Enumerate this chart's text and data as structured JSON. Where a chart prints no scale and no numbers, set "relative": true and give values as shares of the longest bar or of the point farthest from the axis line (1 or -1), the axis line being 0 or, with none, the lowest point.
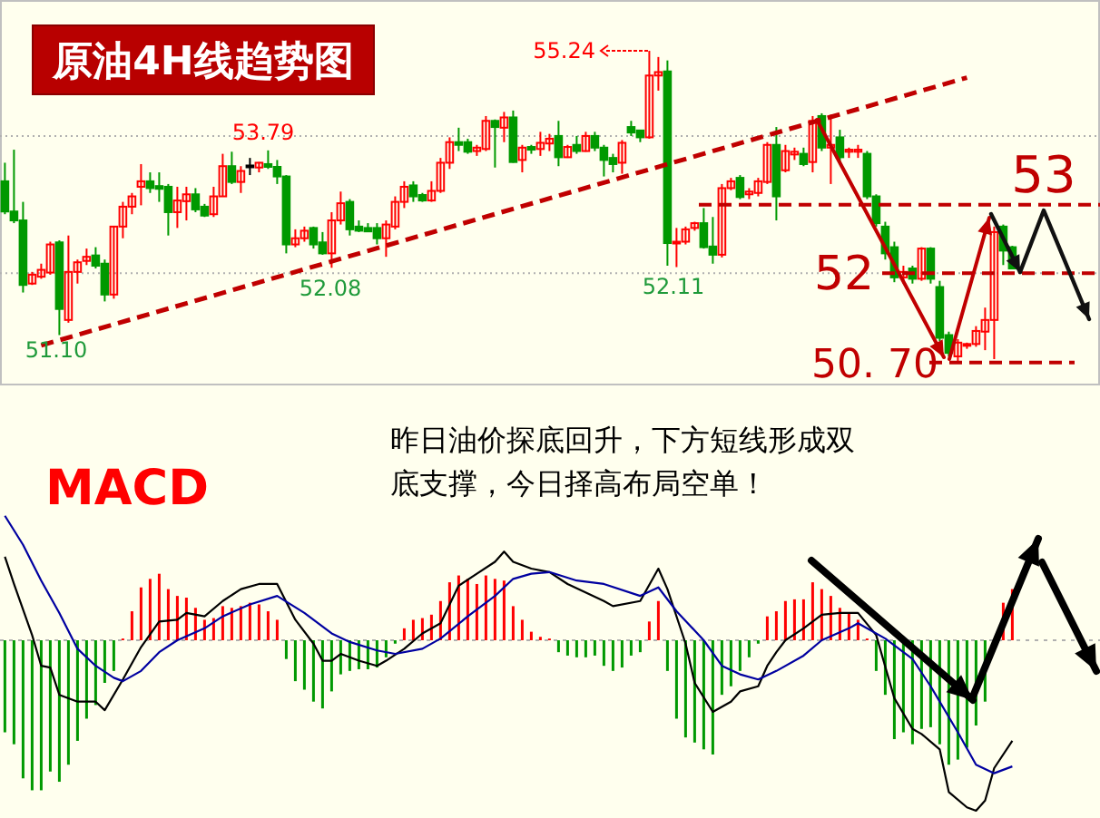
{
  "chart_data": [
    {
      "type": "candlestick",
      "title": "原油4H线趋势图",
      "categories": [
        null,
        null,
        null,
        null,
        null,
        null,
        null,
        null,
        null,
        null,
        null,
        null,
        null,
        null,
        null,
        null,
        null,
        null,
        null,
        null,
        null,
        null,
        null,
        null,
        null,
        null,
        null,
        null,
        null,
        null,
        null,
        null,
        null,
        null,
        null,
        null,
        null,
        null,
        null,
        null,
        null,
        null,
        null,
        null,
        null,
        null,
        null,
        null,
        null,
        null,
        null,
        null,
        null,
        null,
        null,
        null,
        null,
        null,
        null,
        null,
        null,
        null,
        null,
        null,
        null,
        null,
        null,
        null,
        null,
        null,
        null,
        null,
        null,
        null,
        null,
        null,
        null,
        null,
        null,
        null,
        null,
        null,
        null,
        null,
        null,
        null,
        null,
        null,
        null,
        null,
        null,
        null,
        null,
        null,
        null,
        null,
        null,
        null,
        null,
        null,
        null,
        null,
        null,
        null,
        null,
        null,
        null,
        null,
        null,
        null,
        null,
        null
      ],
      "ohlc": [
        [
          53.34,
          53.61,
          52.86,
          52.9
        ],
        [
          52.9,
          53.8,
          52.73,
          52.77
        ],
        [
          52.77,
          53.04,
          51.72,
          51.83
        ],
        [
          51.85,
          52.02,
          51.83,
          51.98
        ],
        [
          51.95,
          52.14,
          51.92,
          52.05
        ],
        [
          52.01,
          52.46,
          51.98,
          52.42
        ],
        [
          52.45,
          52.48,
          51.1,
          51.48
        ],
        [
          51.32,
          52.55,
          51.28,
          52.02
        ],
        [
          52.02,
          52.2,
          51.85,
          52.16
        ],
        [
          52.18,
          52.36,
          52.12,
          52.24
        ],
        [
          52.26,
          52.38,
          52.07,
          52.11
        ],
        [
          52.14,
          52.2,
          51.59,
          51.69
        ],
        [
          51.69,
          52.68,
          51.63,
          52.68
        ],
        [
          52.68,
          53.04,
          52.51,
          52.97
        ],
        [
          52.97,
          53.17,
          52.86,
          53.12
        ],
        [
          53.26,
          53.59,
          52.99,
          53.34
        ],
        [
          53.34,
          53.47,
          53.17,
          53.24
        ],
        [
          53.27,
          53.47,
          53.04,
          53.23
        ],
        [
          53.26,
          53.3,
          52.55,
          52.89
        ],
        [
          52.89,
          53.26,
          52.66,
          53.06
        ],
        [
          53.05,
          53.26,
          52.77,
          53.15
        ],
        [
          53.15,
          53.24,
          52.89,
          52.93
        ],
        [
          52.97,
          53.01,
          52.82,
          52.84
        ],
        [
          52.86,
          53.26,
          52.82,
          53.12
        ],
        [
          53.12,
          53.74,
          53.12,
          53.56
        ],
        [
          53.56,
          53.77,
          53.3,
          53.33
        ],
        [
          53.33,
          53.56,
          53.17,
          53.49
        ],
        [
          53.57,
          53.68,
          53.43,
          53.57
        ],
        [
          53.54,
          53.62,
          53.47,
          53.61
        ],
        [
          53.59,
          53.79,
          53.52,
          53.55
        ],
        [
          53.55,
          53.65,
          53.3,
          53.41
        ],
        [
          53.41,
          53.43,
          52.29,
          52.42
        ],
        [
          52.42,
          52.64,
          52.38,
          52.51
        ],
        [
          52.51,
          52.68,
          52.46,
          52.62
        ],
        [
          52.66,
          52.68,
          52.36,
          52.42
        ],
        [
          52.45,
          52.6,
          52.27,
          52.29
        ],
        [
          52.29,
          52.89,
          52.08,
          52.77
        ],
        [
          52.77,
          53.19,
          52.71,
          53.02
        ],
        [
          53.04,
          53.08,
          52.55,
          52.64
        ],
        [
          52.68,
          52.77,
          52.6,
          52.62
        ],
        [
          52.66,
          52.73,
          52.6,
          52.61
        ],
        [
          52.66,
          52.73,
          52.42,
          52.51
        ],
        [
          52.51,
          52.77,
          52.24,
          52.71
        ],
        [
          52.68,
          53.12,
          52.64,
          53.04
        ],
        [
          53.04,
          53.34,
          52.95,
          53.26
        ],
        [
          53.28,
          53.34,
          53.04,
          53.12
        ],
        [
          53.14,
          53.17,
          53.04,
          53.06
        ],
        [
          53.06,
          53.34,
          53.04,
          53.2
        ],
        [
          53.2,
          53.68,
          53.17,
          53.61
        ],
        [
          53.61,
          53.98,
          53.52,
          53.91
        ],
        [
          53.91,
          54.12,
          53.78,
          53.87
        ],
        [
          53.91,
          53.96,
          53.74,
          53.77
        ],
        [
          53.78,
          53.87,
          53.71,
          53.83
        ],
        [
          53.81,
          54.29,
          53.78,
          54.22
        ],
        [
          54.22,
          54.24,
          53.54,
          54.13
        ],
        [
          54.12,
          54.35,
          53.91,
          54.27
        ],
        [
          54.27,
          54.37,
          53.61,
          53.62
        ],
        [
          53.65,
          53.87,
          53.47,
          53.83
        ],
        [
          53.84,
          53.87,
          53.74,
          53.8
        ],
        [
          53.81,
          54.06,
          53.71,
          53.9
        ],
        [
          53.89,
          54.03,
          53.78,
          53.96
        ],
        [
          54.0,
          54.22,
          53.56,
          53.69
        ],
        [
          53.69,
          53.87,
          53.68,
          53.84
        ],
        [
          53.87,
          54.0,
          53.74,
          53.78
        ],
        [
          53.78,
          54.06,
          53.77,
          54.0
        ],
        [
          54.0,
          54.06,
          53.78,
          53.83
        ],
        [
          53.83,
          53.87,
          53.41,
          53.65
        ],
        [
          53.68,
          53.74,
          53.47,
          53.59
        ],
        [
          53.61,
          53.94,
          53.45,
          53.9
        ],
        [
          54.13,
          54.22,
          54.0,
          54.05
        ],
        [
          54.08,
          54.09,
          53.91,
          53.98
        ],
        [
          53.98,
          55.24,
          53.96,
          54.88
        ],
        [
          54.88,
          55.15,
          54.66,
          54.93
        ],
        [
          54.94,
          55.1,
          52.11,
          52.44
        ],
        [
          52.45,
          52.66,
          52.09,
          52.46
        ],
        [
          52.46,
          52.68,
          52.42,
          52.64
        ],
        [
          52.66,
          52.75,
          52.62,
          52.73
        ],
        [
          52.73,
          52.95,
          52.36,
          52.38
        ],
        [
          52.39,
          52.82,
          52.14,
          52.27
        ],
        [
          52.27,
          53.3,
          52.23,
          53.24
        ],
        [
          53.24,
          53.39,
          53.21,
          53.34
        ],
        [
          53.39,
          53.43,
          53.08,
          53.11
        ],
        [
          53.15,
          53.24,
          53.08,
          53.19
        ],
        [
          53.17,
          53.39,
          53.12,
          53.34
        ],
        [
          53.33,
          53.91,
          53.3,
          53.87
        ],
        [
          53.87,
          54.13,
          52.77,
          53.12
        ],
        [
          53.5,
          53.87,
          53.47,
          53.78
        ],
        [
          53.73,
          53.83,
          53.65,
          53.77
        ],
        [
          53.74,
          53.83,
          53.56,
          53.59
        ],
        [
          53.62,
          54.29,
          53.47,
          54.22
        ],
        [
          54.29,
          54.33,
          53.78,
          53.83
        ],
        [
          53.83,
          54.31,
          53.3,
          53.87
        ],
        [
          53.98,
          54.09,
          53.62,
          53.69
        ],
        [
          53.77,
          53.83,
          53.68,
          53.8
        ],
        [
          53.77,
          53.87,
          53.68,
          53.8
        ],
        [
          53.74,
          53.78,
          53.08,
          53.12
        ],
        [
          53.12,
          53.15,
          52.68,
          52.73
        ],
        [
          52.68,
          52.75,
          52.2,
          52.29
        ],
        [
          52.38,
          52.46,
          51.87,
          51.94
        ],
        [
          51.94,
          52.11,
          51.85,
          52.02
        ],
        [
          52.07,
          52.11,
          51.85,
          51.92
        ],
        [
          51.92,
          52.38,
          51.89,
          52.36
        ],
        [
          52.36,
          52.38,
          51.85,
          51.92
        ],
        [
          51.8,
          51.89,
          51.01,
          51.06
        ],
        [
          51.1,
          51.15,
          50.79,
          50.84
        ],
        [
          50.79,
          51.04,
          50.7,
          50.99
        ],
        [
          50.95,
          50.99,
          50.9,
          50.97
        ],
        [
          50.97,
          51.23,
          50.93,
          51.16
        ],
        [
          51.15,
          51.5,
          50.88,
          51.32
        ],
        [
          51.32,
          52.68,
          50.75,
          52.6
        ],
        [
          52.68,
          52.71,
          52.12,
          52.33
        ],
        [
          52.38,
          52.4,
          52.07,
          52.07
        ]
      ],
      "colors": [
        "#009900",
        "#009900",
        "#009900",
        "#ff0000",
        "#ff0000",
        "#ff0000",
        "#009900",
        "#ff0000",
        "#ff0000",
        "#ff0000",
        "#009900",
        "#009900",
        "#ff0000",
        "#ff0000",
        "#ff0000",
        "#ff0000",
        "#009900",
        "#009900",
        "#009900",
        "#ff0000",
        "#ff0000",
        "#009900",
        "#009900",
        "#ff0000",
        "#ff0000",
        "#009900",
        "#ff0000",
        "#000000",
        "#ff0000",
        "#009900",
        "#009900",
        "#009900",
        "#ff0000",
        "#ff0000",
        "#009900",
        "#009900",
        "#ff0000",
        "#ff0000",
        "#009900",
        "#009900",
        "#009900",
        "#009900",
        "#ff0000",
        "#ff0000",
        "#ff0000",
        "#009900",
        "#009900",
        "#ff0000",
        "#ff0000",
        "#ff0000",
        "#009900",
        "#009900",
        "#ff0000",
        "#ff0000",
        "#009900",
        "#ff0000",
        "#009900",
        "#ff0000",
        "#009900",
        "#ff0000",
        "#ff0000",
        "#009900",
        "#ff0000",
        "#009900",
        "#ff0000",
        "#009900",
        "#009900",
        "#009900",
        "#ff0000",
        "#009900",
        "#009900",
        "#ff0000",
        "#ff0000",
        "#009900",
        "#ff0000",
        "#ff0000",
        "#ff0000",
        "#009900",
        "#009900",
        "#ff0000",
        "#ff0000",
        "#009900",
        "#ff0000",
        "#ff0000",
        "#ff0000",
        "#009900",
        "#ff0000",
        "#ff0000",
        "#009900",
        "#ff0000",
        "#009900",
        "#ff0000",
        "#009900",
        "#ff0000",
        "#ff0000",
        "#009900",
        "#009900",
        "#009900",
        "#009900",
        "#ff0000",
        "#009900",
        "#ff0000",
        "#009900",
        "#009900",
        "#009900",
        "#ff0000",
        "#ff0000",
        "#ff0000",
        "#ff0000",
        "#ff0000",
        "#009900",
        "#009900"
      ],
      "series": [
        {
          "type": "line",
          "color": "#c00000",
          "values": [
            null,
            null,
            null,
            null,
            50.95,
            null,
            null,
            null,
            null,
            null,
            null,
            null,
            null,
            null,
            null,
            null,
            null,
            null,
            null,
            null,
            null,
            null,
            null,
            null,
            null,
            null,
            null,
            null,
            null,
            null,
            null,
            null,
            null,
            null,
            null,
            null,
            null,
            null,
            null,
            null,
            null,
            null,
            null,
            null,
            null,
            null,
            null,
            null,
            null,
            null,
            null,
            null,
            null,
            null,
            null,
            null,
            null,
            null,
            null,
            null,
            null,
            null,
            null,
            null,
            null,
            null,
            null,
            null,
            null,
            null,
            null,
            null,
            null,
            null,
            null,
            null,
            null,
            null,
            null,
            null,
            null,
            null,
            null,
            null,
            null,
            null,
            null,
            null,
            null,
            null,
            null,
            null,
            null,
            null,
            null,
            null,
            null,
            null,
            null,
            null,
            null,
            null,
            null,
            null,
            null,
            null,
            54.85,
            null,
            null,
            null,
            null,
            null
          ]
        }
      ],
      "line_style": "dashed",
      "ylim": [
        50.38,
        55.98
      ],
      "yticks": [
        {
          "value": 52,
          "label": null
        },
        {
          "value": 54,
          "label": null
        }
      ],
      "grid": "y",
      "ref_lines": [
        {
          "axis": "y",
          "value": 53,
          "label": "53",
          "color": "#c00000",
          "line_style": "dashed"
        },
        {
          "axis": "y",
          "value": 52,
          "label": "52",
          "color": "#c00000",
          "line_style": "dashed"
        },
        {
          "axis": "y",
          "value": 50.7,
          "color": "#c00000",
          "line_style": "dashed"
        }
      ],
      "annotations": [
        "55.24",
        "53.79",
        "52.08",
        "51.10",
        "52.11",
        "50. 70"
      ]
    },
    {
      "type": "bar",
      "title": "MACD",
      "relative": true,
      "ref_lines": [
        {
          "axis": "y",
          "value": 0,
          "color": "#b0b0b0",
          "line_style": "dotted"
        }
      ],
      "categories": [
        null,
        null,
        null,
        null,
        null,
        null,
        null,
        null,
        null,
        null,
        null,
        null,
        null,
        null,
        null,
        null,
        null,
        null,
        null,
        null,
        null,
        null,
        null,
        null,
        null,
        null,
        null,
        null,
        null,
        null,
        null,
        null,
        null,
        null,
        null,
        null,
        null,
        null,
        null,
        null,
        null,
        null,
        null,
        null,
        null,
        null,
        null,
        null,
        null,
        null,
        null,
        null,
        null,
        null,
        null,
        null,
        null,
        null,
        null,
        null,
        null,
        null,
        null,
        null,
        null,
        null,
        null,
        null,
        null,
        null,
        null,
        null,
        null,
        null,
        null,
        null,
        null,
        null,
        null,
        null,
        null,
        null,
        null,
        null,
        null,
        null,
        null,
        null,
        null,
        null,
        null,
        null,
        null,
        null,
        null,
        null,
        null,
        null,
        null,
        null,
        null,
        null,
        null,
        null,
        null,
        null,
        null,
        null,
        null,
        null,
        null,
        null
      ],
      "series": [
        {
          "type": "bar",
          "values": [
            -0.54,
            -0.61,
            -0.81,
            -0.88,
            -0.88,
            -0.77,
            -0.83,
            -0.73,
            -0.59,
            -0.46,
            -0.38,
            -0.25,
            -0.18,
            0.01,
            0.17,
            0.31,
            0.36,
            0.39,
            0.3,
            0.26,
            0.25,
            0.19,
            0.12,
            0.13,
            0.2,
            0.19,
            0.2,
            0.22,
            0.21,
            0.17,
            0.12,
            -0.11,
            -0.24,
            -0.29,
            -0.36,
            -0.4,
            -0.3,
            -0.2,
            -0.18,
            -0.17,
            -0.17,
            -0.16,
            -0.1,
            -0.02,
            0.07,
            0.12,
            0.13,
            0.15,
            0.23,
            0.34,
            0.38,
            0.36,
            0.33,
            0.38,
            0.36,
            0.35,
            0.2,
            0.12,
            0.05,
            0.02,
            0.01,
            -0.07,
            -0.09,
            -0.1,
            -0.1,
            -0.09,
            -0.15,
            -0.18,
            -0.16,
            -0.09,
            -0.07,
            0.11,
            0.23,
            -0.18,
            -0.46,
            -0.57,
            -0.6,
            -0.64,
            -0.67,
            -0.32,
            -0.27,
            -0.18,
            -0.1,
            -0.02,
            0.14,
            0.17,
            0.23,
            0.24,
            0.24,
            0.34,
            0.3,
            0.26,
            0.19,
            0.16,
            0.12,
            0.01,
            -0.18,
            -0.32,
            -0.58,
            -0.54,
            -0.61,
            -0.52,
            -0.51,
            -0.61,
            -0.73,
            -0.7,
            -0.63,
            -0.5,
            -0.36,
            null,
            0.22,
            0.3
          ],
          "colors": [
            "#009900",
            "#009900",
            "#009900",
            "#009900",
            "#009900",
            "#009900",
            "#009900",
            "#009900",
            "#009900",
            "#009900",
            "#009900",
            "#009900",
            "#009900",
            "#ff0000",
            "#ff0000",
            "#ff0000",
            "#ff0000",
            "#ff0000",
            "#ff0000",
            "#ff0000",
            "#ff0000",
            "#ff0000",
            "#ff0000",
            "#ff0000",
            "#ff0000",
            "#ff0000",
            "#ff0000",
            "#ff0000",
            "#ff0000",
            "#ff0000",
            "#ff0000",
            "#009900",
            "#009900",
            "#009900",
            "#009900",
            "#009900",
            "#009900",
            "#009900",
            "#009900",
            "#009900",
            "#009900",
            "#009900",
            "#009900",
            "#009900",
            "#ff0000",
            "#ff0000",
            "#ff0000",
            "#ff0000",
            "#ff0000",
            "#ff0000",
            "#ff0000",
            "#ff0000",
            "#ff0000",
            "#ff0000",
            "#ff0000",
            "#ff0000",
            "#ff0000",
            "#ff0000",
            "#ff0000",
            "#ff0000",
            "#ff0000",
            "#009900",
            "#009900",
            "#009900",
            "#009900",
            "#009900",
            "#009900",
            "#009900",
            "#009900",
            "#009900",
            "#009900",
            "#ff0000",
            "#ff0000",
            "#009900",
            "#009900",
            "#009900",
            "#009900",
            "#009900",
            "#009900",
            "#009900",
            "#009900",
            "#009900",
            "#009900",
            "#009900",
            "#ff0000",
            "#ff0000",
            "#ff0000",
            "#ff0000",
            "#ff0000",
            "#ff0000",
            "#ff0000",
            "#ff0000",
            "#ff0000",
            "#ff0000",
            "#ff0000",
            "#ff0000",
            "#009900",
            "#009900",
            "#009900",
            "#009900",
            "#009900",
            "#009900",
            "#009900",
            "#009900",
            "#009900",
            "#009900",
            "#009900",
            "#009900",
            "#009900",
            "#009900",
            "#ff0000",
            "#ff0000"
          ]
        },
        {
          "type": "line",
          "color": "#000000",
          "values": [
            0.49,
            0.33,
            null,
            0.03,
            -0.15,
            -0.16,
            -0.32,
            null,
            -0.36,
            null,
            -0.36,
            -0.41,
            null,
            -0.23,
            null,
            -0.04,
            null,
            0.11,
            null,
            0.12,
            0.16,
            null,
            0.14,
            null,
            0.23,
            null,
            0.3,
            null,
            0.33,
            null,
            0.33,
            null,
            0.12,
            null,
            -0.02,
            -0.12,
            -0.12,
            -0.08,
            null,
            -0.12,
            null,
            -0.15,
            -0.12,
            null,
            -0.05,
            null,
            0.04,
            null,
            0.1,
            0.21,
            0.32,
            null,
            0.39,
            null,
            0.46,
            0.52,
            0.46,
            null,
            0.42,
            null,
            0.4,
            null,
            0.33,
            null,
            null,
            null,
            0.23,
            0.2,
            null,
            null,
            0.23,
            null,
            0.42,
            0.3,
            null,
            -0.02,
            -0.25,
            null,
            -0.42,
            null,
            -0.36,
            -0.3,
            null,
            -0.27,
            -0.15,
            -0.07,
            0.0,
            null,
            0.07,
            null,
            0.15,
            null,
            0.16,
            null,
            0.16,
            null,
            0.03,
            null,
            -0.34,
            null,
            -0.52,
            -0.55,
            null,
            -0.64,
            -0.89,
            null,
            -0.98,
            -1.0,
            -0.94,
            -0.75,
            null,
            -0.59
          ]
        },
        {
          "type": "line",
          "color": "#0000a0",
          "values": [
            0.73,
            null,
            0.56,
            null,
            0.35,
            null,
            0.16,
            null,
            -0.05,
            null,
            -0.15,
            null,
            -0.22,
            -0.24,
            null,
            -0.18,
            null,
            -0.07,
            null,
            0.0,
            null,
            null,
            0.07,
            null,
            0.14,
            null,
            null,
            0.21,
            null,
            null,
            0.26,
            null,
            null,
            0.16,
            null,
            null,
            0.04,
            null,
            -0.01,
            null,
            null,
            -0.06,
            null,
            -0.08,
            null,
            null,
            -0.05,
            null,
            0.01,
            null,
            null,
            0.14,
            null,
            null,
            0.26,
            null,
            0.36,
            null,
            0.39,
            null,
            0.4,
            null,
            null,
            0.35,
            null,
            null,
            0.33,
            null,
            null,
            null,
            0.26,
            null,
            0.31,
            null,
            0.17,
            null,
            null,
            0.0,
            null,
            -0.15,
            null,
            -0.2,
            null,
            -0.23,
            null,
            -0.18,
            null,
            null,
            -0.09,
            null,
            0.0,
            null,
            null,
            0.07,
            0.1,
            null,
            null,
            0.01,
            null,
            null,
            -0.11,
            null,
            -0.27,
            null,
            null,
            -0.54,
            null,
            -0.73,
            null,
            -0.78,
            null,
            -0.74
          ]
        }
      ],
      "annotations": [
        "昨日油价探底回升，下方短线形成双底支撑，今日择高布局空单！"
      ]
    }
  ]
}
